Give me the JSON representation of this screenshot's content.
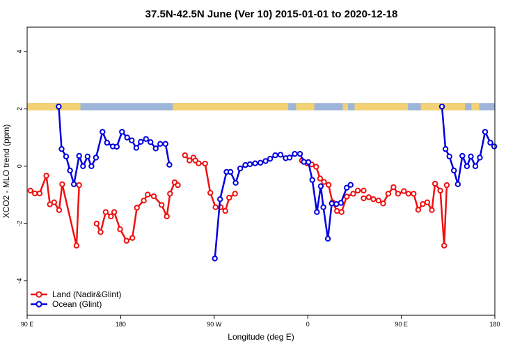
{
  "chart_data": {
    "type": "line",
    "title": "37.5N-42.5N June (Ver 10)   2015-01-01 to 2020-12-18",
    "xlabel": "Longitude (deg E)",
    "ylabel": "XCO2 - MLO trend (ppm)",
    "xlim": [
      90,
      450
    ],
    "ylim": [
      -5.2,
      4.85
    ],
    "x_ticks": [
      {
        "value": 90,
        "label": "90 E"
      },
      {
        "value": 162,
        "label": "180"
      },
      {
        "value": 234,
        "label": "90 W"
      },
      {
        "value": 306,
        "label": "0"
      },
      {
        "value": 378,
        "label": "90 E"
      },
      {
        "value": 450,
        "label": "180"
      }
    ],
    "y_ticks": [
      {
        "value": 4,
        "label": "4"
      },
      {
        "value": 2,
        "label": "2"
      },
      {
        "value": 0,
        "label": "0"
      },
      {
        "value": -2,
        "label": "-2"
      },
      {
        "value": -4,
        "label": "-4"
      }
    ],
    "land_ocean_strip": {
      "y_top": 2.2,
      "y_bottom": 1.95,
      "ocean_color": "#9DB5D8",
      "land_color": "#F2D274",
      "land_ranges": [
        [
          90,
          113
        ],
        [
          114,
          131
        ],
        [
          202,
          291
        ],
        [
          297,
          311
        ],
        [
          333,
          337
        ],
        [
          342,
          383
        ],
        [
          393,
          427
        ],
        [
          432,
          438
        ]
      ]
    },
    "series": [
      {
        "name": "Land (Nadir&Glint)",
        "color": "#EE1111",
        "segments": [
          [
            [
              92.5,
              -0.85
            ],
            [
              96.0,
              -0.95
            ],
            [
              99.6,
              -0.95
            ],
            [
              104.8,
              -0.33
            ],
            [
              107.5,
              -1.33
            ],
            [
              110.8,
              -1.26
            ],
            [
              114.6,
              -1.53
            ],
            [
              117.0,
              -0.63
            ],
            [
              128.0,
              -2.77
            ],
            [
              130.0,
              -0.66
            ]
          ],
          [
            [
              143.5,
              -2.0
            ],
            [
              146.5,
              -2.3
            ],
            [
              150.5,
              -1.6
            ],
            [
              154.5,
              -1.75
            ],
            [
              157.0,
              -1.6
            ],
            [
              161.5,
              -2.2
            ],
            [
              166.5,
              -2.6
            ],
            [
              171.0,
              -2.5
            ],
            [
              174.5,
              -1.45
            ],
            [
              179.8,
              -1.2
            ],
            [
              182.8,
              -0.99
            ],
            [
              187.5,
              -1.05
            ],
            [
              193.5,
              -1.35
            ],
            [
              197.5,
              -1.75
            ],
            [
              200.0,
              -0.96
            ],
            [
              203.5,
              -0.56
            ],
            [
              206.0,
              -0.66
            ]
          ],
          [
            [
              211.5,
              0.38
            ],
            [
              215.0,
              0.2
            ],
            [
              218.0,
              0.3
            ],
            [
              219.5,
              0.2
            ],
            [
              222.0,
              0.1
            ],
            [
              227.0,
              0.09
            ],
            [
              231.0,
              -0.93
            ],
            [
              235.0,
              -1.43
            ],
            [
              239.0,
              -1.43
            ],
            [
              242.5,
              -1.56
            ],
            [
              245.5,
              -1.1
            ],
            [
              250.0,
              -0.96
            ]
          ],
          [
            [
              301.5,
              0.2
            ],
            [
              305.5,
              0.1
            ],
            [
              309.0,
              0.06
            ],
            [
              312.5,
              -0.02
            ],
            [
              315.5,
              -0.43
            ],
            [
              318.5,
              -0.55
            ],
            [
              322.0,
              -0.65
            ],
            [
              325.0,
              -1.26
            ],
            [
              328.5,
              -1.56
            ],
            [
              332.0,
              -1.6
            ],
            [
              336.0,
              -1.06
            ],
            [
              341.0,
              -0.96
            ],
            [
              344.5,
              -0.85
            ],
            [
              349.0,
              -0.85
            ]
          ],
          [
            [
              349.0,
              -1.12
            ],
            [
              353.0,
              -1.08
            ],
            [
              356.5,
              -1.15
            ],
            [
              360.5,
              -1.2
            ],
            [
              364.0,
              -1.3
            ],
            [
              368.0,
              -0.96
            ],
            [
              372.0,
              -0.73
            ],
            [
              375.5,
              -0.96
            ],
            [
              380.0,
              -0.87
            ],
            [
              383.5,
              -0.96
            ],
            [
              387.5,
              -0.96
            ],
            [
              391.0,
              -1.52
            ],
            [
              394.5,
              -1.32
            ],
            [
              398.0,
              -1.26
            ],
            [
              401.5,
              -1.53
            ],
            [
              404.0,
              -0.61
            ],
            [
              408.0,
              -0.85
            ],
            [
              411.0,
              -2.77
            ],
            [
              413.0,
              -0.66
            ]
          ]
        ]
      },
      {
        "name": "Ocean (Glint)",
        "color": "#0000DD",
        "segments": [
          [
            [
              114.3,
              2.08
            ],
            [
              116.5,
              0.6
            ],
            [
              120.0,
              0.34
            ],
            [
              123.0,
              -0.15
            ],
            [
              126.0,
              -0.63
            ],
            [
              130.0,
              0.36
            ],
            [
              133.0,
              0.0
            ],
            [
              136.5,
              0.34
            ],
            [
              139.5,
              0.0
            ],
            [
              143.0,
              0.3
            ],
            [
              148.0,
              1.2
            ],
            [
              151.5,
              0.82
            ],
            [
              156.0,
              0.69
            ],
            [
              159.0,
              0.68
            ],
            [
              163.0,
              1.2
            ],
            [
              167.0,
              1.0
            ],
            [
              170.5,
              0.9
            ],
            [
              174.0,
              0.64
            ],
            [
              177.5,
              0.85
            ],
            [
              181.5,
              0.95
            ],
            [
              185.0,
              0.84
            ],
            [
              189.0,
              0.62
            ],
            [
              192.5,
              0.78
            ],
            [
              196.5,
              0.78
            ],
            [
              199.5,
              0.05
            ]
          ],
          [
            [
              234.5,
              -3.22
            ],
            [
              238.5,
              -1.15
            ],
            [
              243.5,
              -0.2
            ],
            [
              246.5,
              -0.2
            ],
            [
              250.5,
              -0.58
            ],
            [
              254.0,
              -0.08
            ],
            [
              258.0,
              0.04
            ],
            [
              261.5,
              0.07
            ],
            [
              265.5,
              0.1
            ],
            [
              269.5,
              0.12
            ],
            [
              273.5,
              0.18
            ],
            [
              277.0,
              0.26
            ],
            [
              281.0,
              0.38
            ],
            [
              285.0,
              0.4
            ],
            [
              289.0,
              0.28
            ],
            [
              292.0,
              0.3
            ],
            [
              296.0,
              0.43
            ],
            [
              300.0,
              0.43
            ],
            [
              303.0,
              0.15
            ],
            [
              306.5,
              0.14
            ],
            [
              309.5,
              -0.48
            ],
            [
              313.0,
              -1.6
            ],
            [
              316.0,
              -0.7
            ],
            [
              318.0,
              -1.43
            ],
            [
              321.5,
              -2.53
            ],
            [
              324.5,
              -1.3
            ],
            [
              328.0,
              -1.32
            ],
            [
              331.5,
              -1.28
            ],
            [
              336.0,
              -0.75
            ],
            [
              339.0,
              -0.65
            ]
          ],
          [
            [
              409.3,
              2.08
            ],
            [
              412.0,
              0.6
            ],
            [
              415.0,
              0.34
            ],
            [
              418.5,
              -0.15
            ],
            [
              421.5,
              -0.63
            ],
            [
              425.0,
              0.36
            ],
            [
              428.5,
              0.0
            ],
            [
              431.5,
              0.34
            ],
            [
              435.0,
              0.0
            ],
            [
              438.5,
              0.3
            ],
            [
              442.5,
              1.2
            ],
            [
              446.5,
              0.82
            ],
            [
              449.5,
              0.69
            ]
          ]
        ]
      }
    ],
    "legend": {
      "position": "bottom-left",
      "entries": [
        "Land (Nadir&Glint)",
        "Ocean (Glint)"
      ]
    },
    "grid": false
  }
}
